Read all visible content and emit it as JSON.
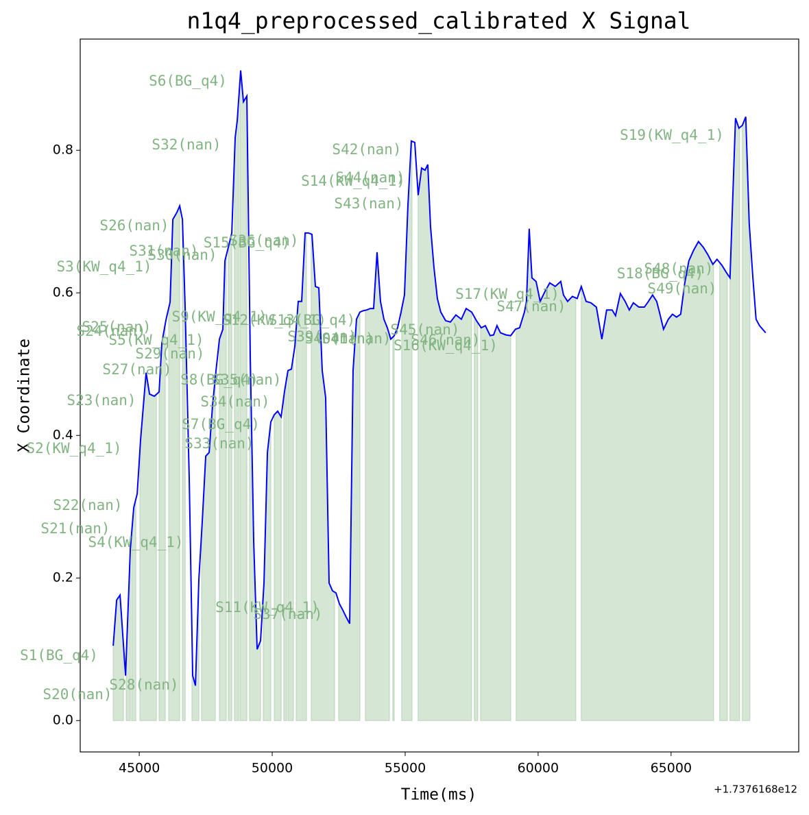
{
  "chart_data": {
    "type": "line",
    "title": "n1q4_preprocessed_calibrated X Signal",
    "x_label": "Time(ms)",
    "y_label": "X Coordinate",
    "x_offset_label": "+1.7376168e12",
    "xlim": [
      42780,
      69800
    ],
    "ylim": [
      -0.044,
      0.956
    ],
    "xticks": [
      45000,
      50000,
      55000,
      60000,
      65000
    ],
    "yticks": [
      {
        "value": 0,
        "label": "0.0"
      },
      0.2,
      0.4,
      0.6,
      0.8
    ],
    "color": "#0000ff",
    "fill_color": "#d5e6d5",
    "annotation_color": "#82b482",
    "x": [
      44021,
      44150,
      44278,
      44485,
      44665,
      44794,
      44923,
      45052,
      45180,
      45258,
      45387,
      45567,
      45747,
      45851,
      46005,
      46160,
      46263,
      46418,
      46521,
      46624,
      46727,
      46881,
      47010,
      47113,
      47242,
      47371,
      47500,
      47629,
      47758,
      47887,
      48015,
      48144,
      48222,
      48351,
      48480,
      48608,
      48686,
      48814,
      48918,
      49046,
      49175,
      49304,
      49433,
      49562,
      49691,
      49820,
      49948,
      50077,
      50206,
      50335,
      50464,
      50593,
      50722,
      50851,
      50979,
      51108,
      51237,
      51366,
      51495,
      51624,
      51753,
      51881,
      52010,
      52139,
      52268,
      52397,
      52526,
      52655,
      52784,
      52913,
      53041,
      53170,
      53299,
      53428,
      53557,
      53686,
      53814,
      53943,
      54072,
      54201,
      54330,
      54459,
      54588,
      54716,
      54845,
      54974,
      55103,
      55232,
      55361,
      55490,
      55619,
      55747,
      55851,
      55954,
      56082,
      56211,
      56340,
      56521,
      56701,
      56907,
      57113,
      57294,
      57500,
      57680,
      57861,
      58015,
      58196,
      58325,
      58454,
      58582,
      58789,
      58969,
      59149,
      59304,
      59485,
      59562,
      59665,
      59768,
      59923,
      60077,
      60258,
      60438,
      60644,
      60851,
      60954,
      61108,
      61289,
      61469,
      61624,
      61804,
      61985,
      62191,
      62397,
      62577,
      62784,
      62912,
      63093,
      63273,
      63428,
      63582,
      63789,
      63995,
      64149,
      64304,
      64459,
      64562,
      64716,
      64897,
      65052,
      65206,
      65361,
      65515,
      65670,
      65851,
      66031,
      66211,
      66392,
      66572,
      66727,
      66907,
      67088,
      67216,
      67423,
      67552,
      67680,
      67809,
      67938,
      68067,
      68196,
      68325,
      68557
    ],
    "values": [
      0.105,
      0.169,
      0.176,
      0.063,
      0.241,
      0.299,
      0.318,
      0.395,
      0.453,
      0.488,
      0.458,
      0.455,
      0.461,
      0.53,
      0.562,
      0.587,
      0.703,
      0.713,
      0.722,
      0.703,
      0.578,
      0.337,
      0.063,
      0.049,
      0.198,
      0.28,
      0.371,
      0.376,
      0.443,
      0.491,
      0.535,
      0.549,
      0.645,
      0.664,
      0.684,
      0.818,
      0.842,
      0.912,
      0.868,
      0.876,
      0.511,
      0.251,
      0.1,
      0.112,
      0.193,
      0.376,
      0.419,
      0.429,
      0.434,
      0.426,
      0.462,
      0.491,
      0.493,
      0.525,
      0.588,
      0.588,
      0.684,
      0.684,
      0.682,
      0.609,
      0.607,
      0.491,
      0.453,
      0.193,
      0.182,
      0.179,
      0.164,
      0.155,
      0.145,
      0.136,
      0.491,
      0.563,
      0.573,
      0.575,
      0.576,
      0.578,
      0.578,
      0.657,
      0.588,
      0.563,
      0.551,
      0.535,
      0.54,
      0.551,
      0.573,
      0.597,
      0.722,
      0.813,
      0.811,
      0.737,
      0.775,
      0.772,
      0.78,
      0.693,
      0.636,
      0.592,
      0.573,
      0.561,
      0.559,
      0.569,
      0.563,
      0.578,
      0.573,
      0.561,
      0.551,
      0.554,
      0.54,
      0.541,
      0.554,
      0.544,
      0.541,
      0.54,
      0.549,
      0.551,
      0.573,
      0.588,
      0.69,
      0.621,
      0.616,
      0.588,
      0.602,
      0.614,
      0.609,
      0.616,
      0.597,
      0.588,
      0.595,
      0.592,
      0.609,
      0.588,
      0.586,
      0.58,
      0.535,
      0.576,
      0.576,
      0.568,
      0.599,
      0.588,
      0.576,
      0.586,
      0.58,
      0.58,
      0.588,
      0.597,
      0.588,
      0.573,
      0.549,
      0.563,
      0.57,
      0.566,
      0.57,
      0.614,
      0.645,
      0.66,
      0.672,
      0.664,
      0.653,
      0.64,
      0.647,
      0.639,
      0.628,
      0.621,
      0.845,
      0.831,
      0.835,
      0.847,
      0.698,
      0.626,
      0.563,
      0.554,
      0.544
    ],
    "shaded_spans": [
      [
        44021,
        44407
      ],
      [
        44510,
        44665
      ],
      [
        44717,
        44871
      ],
      [
        45026,
        45644
      ],
      [
        45747,
        45979
      ],
      [
        46108,
        46520
      ],
      [
        46624,
        46727
      ],
      [
        46984,
        47242
      ],
      [
        47345,
        47861
      ],
      [
        48015,
        48273
      ],
      [
        48350,
        48479
      ],
      [
        48582,
        48737
      ],
      [
        48788,
        49046
      ],
      [
        49149,
        49561
      ],
      [
        49664,
        49948
      ],
      [
        50077,
        50335
      ],
      [
        50438,
        50541
      ],
      [
        50592,
        50799
      ],
      [
        50902,
        51288
      ],
      [
        51468,
        52345
      ],
      [
        52499,
        53298
      ],
      [
        53505,
        54407
      ],
      [
        54536,
        54587
      ],
      [
        54870,
        55256
      ],
      [
        55488,
        57498
      ],
      [
        57601,
        57730
      ],
      [
        57834,
        58968
      ],
      [
        59175,
        61417
      ],
      [
        61623,
        66597
      ],
      [
        66829,
        67112
      ],
      [
        67216,
        67576
      ],
      [
        67679,
        67963
      ]
    ],
    "annotations": [
      "S6(BG_q4)",
      "S32(nan)",
      "S42(nan)",
      "S44(nan)",
      "S14(KW_q4_1)",
      "S43(nan)",
      "S19(KW_q4_1)",
      "S26(nan)",
      "S31(nan)",
      "S30(nan)",
      "S15(BG_q4)",
      "S36(nan)",
      "S3(KW_q4_1)",
      "S48(nan)",
      "S18(BG_q4)",
      "S49(nan)",
      "S17(KW_q4_1)",
      "S47(nan)",
      "S9(KW_q4_1)",
      "S12(KW_q4_1)",
      "S13(BG_q4)",
      "S25(nan)",
      "S24(nan)",
      "S5(KW_q4_1)",
      "S29(nan)",
      "S45(nan)",
      "S46(nan)",
      "S16(KW_q4_1)",
      "S39(nan)",
      "S40(nan)",
      "S41(nan)",
      "S27(nan)",
      "S8(BG_q4)",
      "S35(nan)",
      "S23(nan)",
      "S34(nan)",
      "S7(BG_q4)",
      "S33(nan)",
      "S2(KW_q4_1)",
      "S22(nan)",
      "S21(nan)",
      "S4(KW_q4_1)",
      "S11(KW_q4_1)",
      "S37(nan)",
      "S1(BG_q4)",
      "S28(nan)",
      "S20(nan)"
    ]
  }
}
